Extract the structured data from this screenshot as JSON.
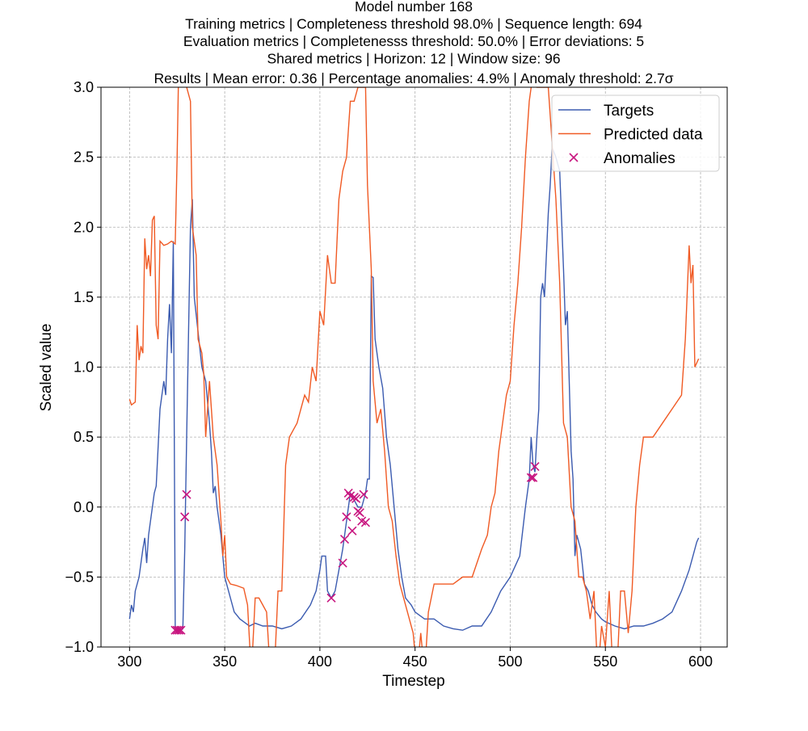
{
  "chart_data": {
    "type": "line",
    "title": [
      "Model number 168",
      "Training metrics | Completeness threshold 98.0% | Sequence length: 694",
      "Evaluation metrics | Completenesss threshold: 50.0% | Error deviations: 5",
      "Shared metrics | Horizon: 12 | Window size: 96",
      "Results | Mean error: 0.36 | Percentage anomalies: 4.9% | Anomaly threshold: 2.7σ"
    ],
    "x_label": "Timestep",
    "y_label": "Scaled value",
    "xlim": [
      285,
      614
    ],
    "ylim": [
      -1,
      3
    ],
    "xticks": [
      300,
      350,
      400,
      450,
      500,
      550,
      600
    ],
    "yticks": [
      {
        "value": -1,
        "label": "−1.0"
      },
      {
        "value": -0.5,
        "label": "−0.5"
      },
      {
        "value": 0,
        "label": "0.0"
      },
      {
        "value": 0.5,
        "label": "0.5"
      },
      {
        "value": 1,
        "label": "1.0"
      },
      {
        "value": 1.5,
        "label": "1.5"
      },
      {
        "value": 2,
        "label": "2.0"
      },
      {
        "value": 2.5,
        "label": "2.5"
      },
      {
        "value": 3,
        "label": "3.0"
      }
    ],
    "grid": true,
    "legend": "upper right",
    "series": [
      {
        "name": "Targets",
        "color": "#3b5bb0",
        "type": "line",
        "x": [
          300,
          301,
          302,
          303,
          305,
          307,
          308,
          309,
          310,
          312,
          313,
          314,
          316,
          318,
          319,
          320,
          321,
          322,
          323,
          324,
          325,
          326,
          327,
          328,
          329,
          330,
          332,
          333,
          334,
          336,
          338,
          340,
          342,
          343,
          344,
          345,
          346,
          348,
          350,
          352,
          355,
          358,
          360,
          363,
          366,
          370,
          375,
          380,
          385,
          390,
          395,
          398,
          400,
          401,
          403,
          404,
          406,
          408,
          410,
          412,
          414,
          416,
          418,
          420,
          422,
          424,
          425,
          426,
          427,
          428,
          429,
          431,
          433,
          435,
          437,
          439,
          441,
          443,
          445,
          448,
          450,
          455,
          460,
          465,
          470,
          475,
          480,
          485,
          490,
          495,
          500,
          505,
          508,
          510,
          511,
          512,
          513,
          514,
          515,
          516,
          517,
          518,
          520,
          521,
          522,
          524,
          526,
          528,
          529,
          530,
          531,
          532,
          533,
          534,
          535,
          537,
          539,
          541,
          543,
          545,
          548,
          550,
          555,
          560,
          565,
          570,
          575,
          580,
          585,
          590,
          594,
          596,
          598,
          599
        ],
        "values": [
          -0.8,
          -0.7,
          -0.75,
          -0.6,
          -0.5,
          -0.3,
          -0.22,
          -0.4,
          -0.2,
          0.0,
          0.1,
          0.15,
          0.7,
          0.9,
          0.8,
          1.2,
          1.45,
          1.1,
          1.9,
          -0.87,
          -0.88,
          -0.87,
          -0.88,
          -0.87,
          -0.3,
          0.5,
          2.0,
          2.2,
          1.5,
          1.25,
          1.0,
          0.9,
          0.6,
          0.4,
          0.1,
          0.15,
          0.0,
          -0.2,
          -0.5,
          -0.6,
          -0.75,
          -0.8,
          -0.82,
          -0.85,
          -0.83,
          -0.85,
          -0.85,
          -0.87,
          -0.85,
          -0.8,
          -0.7,
          -0.6,
          -0.45,
          -0.35,
          -0.35,
          -0.6,
          -0.65,
          -0.6,
          -0.45,
          -0.3,
          -0.1,
          0.1,
          0.05,
          0.0,
          0.0,
          0.1,
          0.2,
          0.2,
          1.65,
          1.64,
          1.2,
          1.0,
          0.85,
          0.5,
          0.3,
          0.0,
          -0.3,
          -0.5,
          -0.65,
          -0.7,
          -0.75,
          -0.8,
          -0.8,
          -0.85,
          -0.87,
          -0.88,
          -0.85,
          -0.85,
          -0.75,
          -0.6,
          -0.5,
          -0.35,
          0.0,
          0.2,
          0.5,
          0.3,
          0.25,
          0.5,
          0.7,
          1.5,
          1.6,
          1.5,
          2.1,
          2.3,
          2.57,
          2.5,
          2.4,
          1.7,
          1.3,
          1.4,
          0.9,
          0.4,
          0.2,
          -0.35,
          -0.2,
          -0.3,
          -0.55,
          -0.6,
          -0.7,
          -0.75,
          -0.8,
          -0.82,
          -0.85,
          -0.87,
          -0.85,
          -0.85,
          -0.83,
          -0.8,
          -0.75,
          -0.6,
          -0.45,
          -0.35,
          -0.25,
          -0.22
        ]
      },
      {
        "name": "Predicted data",
        "color": "#f05a24",
        "type": "line",
        "x": [
          300,
          301,
          303,
          304,
          305,
          306,
          307,
          308,
          309,
          310,
          311,
          312,
          313,
          314,
          315,
          316,
          318,
          320,
          322,
          324,
          325,
          326,
          328,
          330,
          332,
          333,
          335,
          336,
          338,
          339,
          340,
          342,
          344,
          346,
          348,
          349,
          350,
          351,
          353,
          356,
          360,
          362,
          364,
          366,
          368,
          370,
          372,
          374,
          376,
          378,
          380,
          382,
          384,
          386,
          388,
          390,
          392,
          394,
          396,
          398,
          400,
          402,
          404,
          406,
          408,
          410,
          412,
          414,
          416,
          418,
          420,
          422,
          424,
          425,
          427,
          428,
          430,
          432,
          434,
          436,
          438,
          440,
          442,
          444,
          446,
          448,
          449,
          451,
          453,
          455,
          457,
          460,
          465,
          470,
          475,
          480,
          485,
          488,
          490,
          492,
          494,
          496,
          498,
          500,
          502,
          504,
          506,
          508,
          510,
          512,
          514,
          516,
          518,
          520,
          522,
          524,
          526,
          528,
          530,
          532,
          534,
          536,
          538,
          540,
          542,
          544,
          546,
          548,
          550,
          552,
          554,
          556,
          558,
          560,
          562,
          564,
          566,
          568,
          570,
          575,
          580,
          585,
          590,
          592,
          594,
          595,
          596,
          597,
          599
        ],
        "values": [
          0.77,
          0.73,
          0.75,
          1.3,
          1.05,
          1.15,
          1.1,
          1.92,
          1.7,
          1.8,
          1.65,
          2.05,
          2.08,
          1.3,
          1.2,
          1.9,
          1.87,
          1.88,
          1.9,
          1.88,
          2.5,
          3.3,
          3.3,
          3.0,
          2.9,
          2.0,
          1.8,
          1.2,
          1.1,
          0.95,
          0.5,
          0.9,
          0.5,
          0.3,
          -0.1,
          -0.35,
          -0.2,
          -0.5,
          -0.55,
          -0.56,
          -0.58,
          -0.7,
          -1.2,
          -0.65,
          -0.65,
          -0.7,
          -0.75,
          -1.2,
          -1.2,
          -0.6,
          -0.6,
          0.3,
          0.5,
          0.55,
          0.6,
          0.7,
          0.8,
          0.75,
          1.0,
          0.9,
          1.4,
          1.3,
          1.8,
          1.6,
          1.6,
          2.2,
          2.4,
          2.5,
          2.9,
          2.9,
          3.0,
          3.0,
          3.0,
          2.3,
          1.7,
          0.9,
          0.6,
          0.7,
          0.4,
          0.0,
          -0.1,
          -0.35,
          -0.55,
          -0.65,
          -0.75,
          -0.85,
          -0.9,
          -1.2,
          -0.9,
          -1.2,
          -0.75,
          -0.55,
          -0.55,
          -0.55,
          -0.5,
          -0.5,
          -0.3,
          -0.2,
          0.0,
          0.1,
          0.4,
          0.6,
          0.8,
          0.9,
          1.3,
          1.6,
          2.0,
          2.5,
          2.9,
          3.1,
          3.0,
          3.0,
          3.0,
          3.0,
          2.6,
          2.2,
          1.6,
          0.6,
          0.5,
          0.0,
          -0.1,
          -0.5,
          -0.5,
          -0.6,
          -0.8,
          -0.6,
          -1.2,
          -0.85,
          -1.0,
          -0.6,
          -1.2,
          -1.2,
          -0.6,
          -0.6,
          -0.9,
          -0.6,
          0.0,
          0.3,
          0.5,
          0.5,
          0.6,
          0.7,
          0.8,
          1.2,
          1.87,
          1.6,
          1.73,
          1.0,
          1.06
        ]
      },
      {
        "name": "Anomalies",
        "color": "#c8157f",
        "type": "scatter",
        "x": [
          324,
          325,
          326,
          327,
          329,
          330,
          406,
          412,
          413,
          414,
          415,
          416,
          417,
          418,
          419,
          420,
          421,
          422,
          423,
          424,
          511,
          512,
          513
        ],
        "values": [
          -0.88,
          -0.88,
          -0.88,
          -0.88,
          -0.07,
          0.09,
          -0.65,
          -0.4,
          -0.23,
          -0.07,
          0.1,
          0.08,
          -0.17,
          0.07,
          0.06,
          -0.03,
          -0.04,
          -0.1,
          0.09,
          -0.11,
          0.21,
          0.21,
          0.29
        ]
      }
    ]
  }
}
